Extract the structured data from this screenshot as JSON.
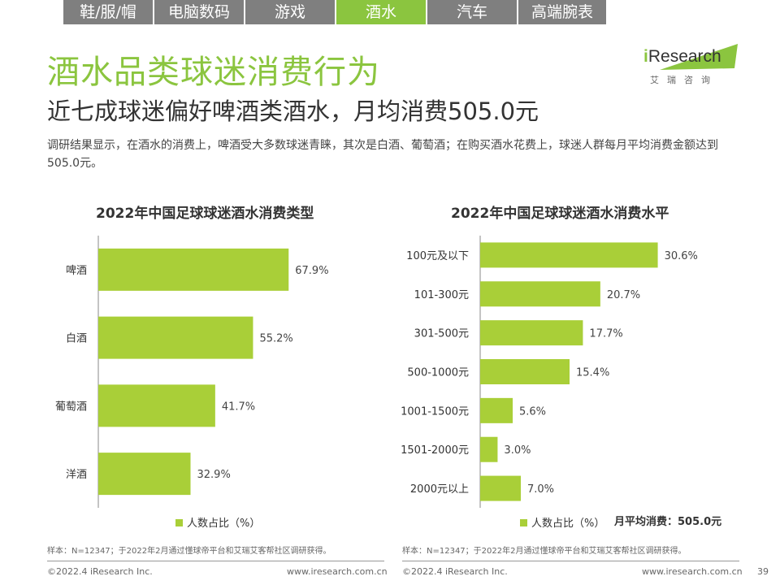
{
  "tabs": [
    {
      "label": "鞋/服/帽",
      "active": false
    },
    {
      "label": "电脑数码",
      "active": false
    },
    {
      "label": "游戏",
      "active": false
    },
    {
      "label": "酒水",
      "active": true
    },
    {
      "label": "汽车",
      "active": false
    },
    {
      "label": "高端腕表",
      "active": false
    }
  ],
  "header": {
    "title": "酒水品类球迷消费行为",
    "subtitle": "近七成球迷偏好啤酒类酒水，月均消费505.0元",
    "description": "调研结果显示，在酒水的消费上，啤酒受大多数球迷青睐，其次是白酒、葡萄酒；在购买酒水花费上，球迷人群每月平均消费金额达到505.0元。"
  },
  "logo": {
    "brand_i": "i",
    "brand_rest": "Research",
    "cn": "艾瑞咨询"
  },
  "colors": {
    "accent": "#8bc53f",
    "bar": "#a9cf38",
    "tab_inactive": "#7f7f7f"
  },
  "chart_data": [
    {
      "type": "bar",
      "orientation": "horizontal",
      "title": "2022年中国足球球迷酒水消费类型",
      "categories": [
        "啤酒",
        "白酒",
        "葡萄酒",
        "洋酒"
      ],
      "values": [
        67.9,
        55.2,
        41.7,
        32.9
      ],
      "value_labels": [
        "67.9%",
        "55.2%",
        "41.7%",
        "32.9%"
      ],
      "series": [
        {
          "name": "人数占比（%）",
          "values": [
            67.9,
            55.2,
            41.7,
            32.9
          ]
        }
      ],
      "legend": "人数占比（%）",
      "legend_position": "bottom",
      "xlim": [
        0,
        100
      ],
      "grid": false
    },
    {
      "type": "bar",
      "orientation": "horizontal",
      "title": "2022年中国足球球迷酒水消费水平",
      "categories": [
        "100元及以下",
        "101-300元",
        "301-500元",
        "500-1000元",
        "1001-1500元",
        "1501-2000元",
        "2000元以上"
      ],
      "values": [
        30.6,
        20.7,
        17.7,
        15.4,
        5.6,
        3.0,
        7.0
      ],
      "value_labels": [
        "30.6%",
        "20.7%",
        "17.7%",
        "15.4%",
        "5.6%",
        "3.0%",
        "7.0%"
      ],
      "series": [
        {
          "name": "人数占比（%）",
          "values": [
            30.6,
            20.7,
            17.7,
            15.4,
            5.6,
            3.0,
            7.0
          ]
        }
      ],
      "legend": "人数占比（%）",
      "legend_position": "bottom",
      "xlim": [
        0,
        35
      ],
      "grid": false,
      "annotation": "月平均消费：505.0元"
    }
  ],
  "notes": {
    "left": "样本：N=12347；于2022年2月通过懂球帝平台和艾瑞艾客帮社区调研获得。",
    "right": "样本：N=12347；于2022年2月通过懂球帝平台和艾瑞艾客帮社区调研获得。"
  },
  "footer": {
    "copyright_left": "©2022.4 iResearch Inc.",
    "url_left": "www.iresearch.com.cn",
    "copyright_right": "©2022.4 iResearch Inc.",
    "url_right": "www.iresearch.com.cn",
    "page": "39"
  }
}
